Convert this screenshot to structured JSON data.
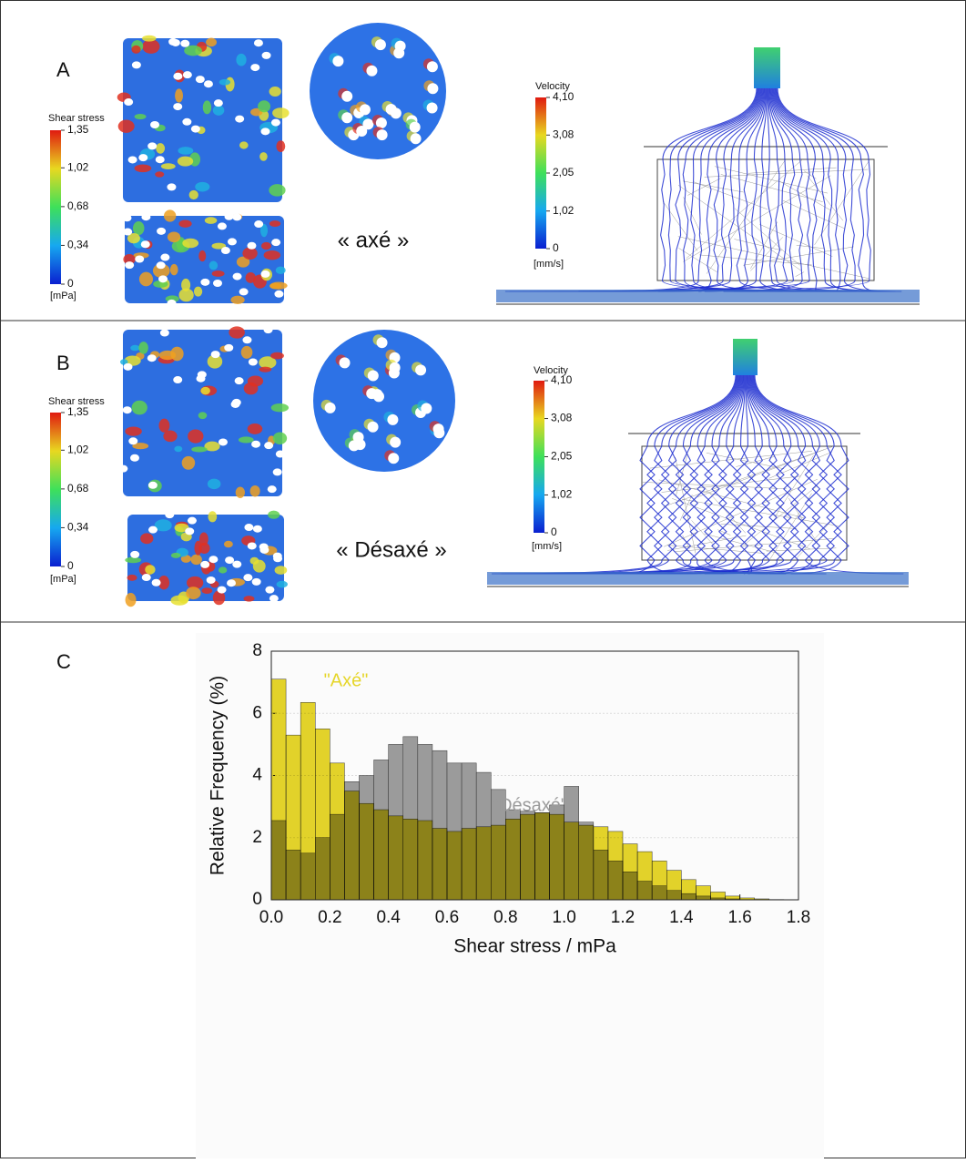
{
  "panels": [
    {
      "label": "A",
      "caption": "« axé »",
      "shear_stress": {
        "title": "Shear stress",
        "unit": "[mPa]",
        "lim": [
          0,
          1.35
        ],
        "ticks": [
          {
            "value": 1.35,
            "label": "1,35"
          },
          {
            "value": 1.02,
            "label": "1,02"
          },
          {
            "value": 0.68,
            "label": "0,68"
          },
          {
            "value": 0.34,
            "label": "0,34"
          },
          0
        ]
      },
      "velocity": {
        "title": "Velocity",
        "unit": "[mm/s]",
        "lim": [
          0,
          4.1
        ],
        "ticks": [
          {
            "value": 4.1,
            "label": "4,10"
          },
          {
            "value": 3.08,
            "label": "3,08"
          },
          {
            "value": 2.05,
            "label": "2,05"
          },
          {
            "value": 1.02,
            "label": "1,02"
          },
          0
        ]
      }
    },
    {
      "label": "B",
      "caption": "« Désaxé »",
      "shear_stress": {
        "title": "Shear stress",
        "unit": "[mPa]",
        "lim": [
          0,
          1.35
        ],
        "ticks": [
          {
            "value": 1.35,
            "label": "1,35"
          },
          {
            "value": 1.02,
            "label": "1,02"
          },
          {
            "value": 0.68,
            "label": "0,68"
          },
          {
            "value": 0.34,
            "label": "0,34"
          },
          0
        ]
      },
      "velocity": {
        "title": "Velocity",
        "unit": "[mm/s]",
        "lim": [
          0,
          4.1
        ],
        "ticks": [
          {
            "value": 4.1,
            "label": "4,10"
          },
          {
            "value": 3.08,
            "label": "3,08"
          },
          {
            "value": 2.05,
            "label": "2,05"
          },
          {
            "value": 1.02,
            "label": "1,02"
          },
          0
        ]
      }
    },
    {
      "label": "C"
    }
  ],
  "chart_data": {
    "type": "histogram",
    "x_label": "Shear stress / mPa",
    "y_label": "Relative Frequency (%)",
    "bins": [
      0,
      0.05,
      0.1,
      0.15,
      0.2,
      0.25,
      0.3,
      0.35,
      0.4,
      0.45,
      0.5,
      0.55,
      0.6,
      0.65,
      0.7,
      0.75,
      0.8,
      0.85,
      0.9,
      0.95,
      1.0,
      1.05,
      1.1,
      1.15,
      1.2,
      1.25,
      1.3,
      1.35,
      1.4,
      1.45,
      1.5,
      1.55,
      1.6,
      1.65,
      1.7,
      1.75
    ],
    "series": [
      {
        "name": "\"Désaxé\"",
        "color": "#9b9b9b",
        "values": [
          2.55,
          1.6,
          1.5,
          2.0,
          2.75,
          3.8,
          4.0,
          4.5,
          5.0,
          5.25,
          5.0,
          4.8,
          4.4,
          4.4,
          4.1,
          3.55,
          2.9,
          2.85,
          2.8,
          3.05,
          3.65,
          2.5,
          1.6,
          1.25,
          0.9,
          0.6,
          0.45,
          0.3,
          0.2,
          0.12,
          0.06,
          0.03,
          0.01,
          0,
          0
        ]
      },
      {
        "name": "\"Axé\"",
        "color": "#e6d62a",
        "values": [
          7.1,
          5.3,
          6.35,
          5.5,
          4.4,
          3.5,
          3.1,
          2.9,
          2.7,
          2.6,
          2.55,
          2.3,
          2.2,
          2.3,
          2.35,
          2.4,
          2.6,
          2.75,
          2.8,
          2.75,
          2.5,
          2.4,
          2.35,
          2.2,
          1.8,
          1.55,
          1.25,
          0.95,
          0.65,
          0.45,
          0.25,
          0.12,
          0.06,
          0.03,
          0.01
        ]
      }
    ],
    "xlim": [
      0,
      1.8
    ],
    "ylim": [
      0,
      8
    ],
    "xticks": [
      {
        "value": 0,
        "label": "0.0"
      },
      0.2,
      0.4,
      0.6,
      0.8,
      {
        "value": 1,
        "label": "1.0"
      },
      1.2,
      1.4,
      1.6,
      1.8
    ],
    "yticks": [
      0,
      2,
      4,
      6,
      8
    ],
    "grid": true
  }
}
